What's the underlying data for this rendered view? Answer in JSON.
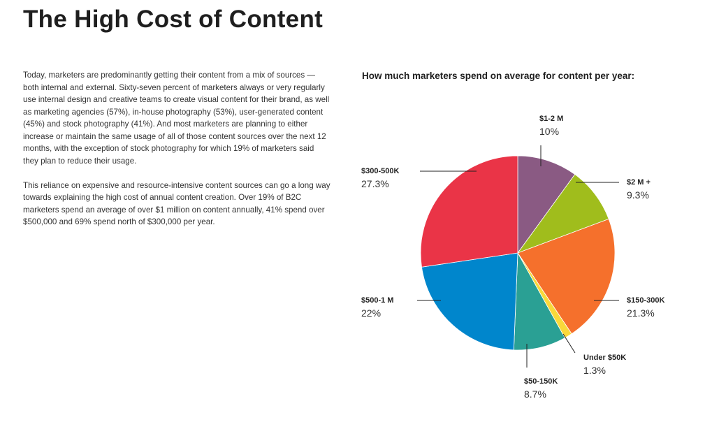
{
  "title": "The High Cost of Content",
  "paragraphs": [
    "Today, marketers are predominantly getting their content from a mix of sources — both internal and external. Sixty-seven percent of marketers always or very regularly use internal design and creative teams to create visual content for their brand, as well as marketing agencies (57%), in-house photography (53%), user-generated content (45%) and stock photography (41%). And most marketers are planning to either increase or maintain the same usage of all of those content sources over the next 12 months, with the exception of stock photography for which 19% of marketers said they plan to reduce their usage.",
    "This reliance on expensive and resource-intensive content sources can go a long way towards explaining the high cost of annual content creation. Over 19% of B2C marketers spend an average of over $1 million on content annually, 41% spend over $500,000 and 69% spend north of $300,000 per year."
  ],
  "chart_data": {
    "type": "pie",
    "title": "How much marketers spend on average for content per year:",
    "slices": [
      {
        "label": "$1-2 M",
        "value": 10,
        "display": "10%",
        "color": "#8a5a83"
      },
      {
        "label": "$2 M +",
        "value": 9.3,
        "display": "9.3%",
        "color": "#a0bd1c"
      },
      {
        "label": "$150-300K",
        "value": 21.3,
        "display": "21.3%",
        "color": "#f5702c"
      },
      {
        "label": "Under $50K",
        "value": 1.3,
        "display": "1.3%",
        "color": "#f9d93a"
      },
      {
        "label": "$50-150K",
        "value": 8.7,
        "display": "8.7%",
        "color": "#2aa094"
      },
      {
        "label": "$500-1 M",
        "value": 22,
        "display": "22%",
        "color": "#0086cc"
      },
      {
        "label": "$300-500K",
        "value": 27.3,
        "display": "27.3%",
        "color": "#ea3447"
      }
    ],
    "start": "top",
    "direction": "clockwise"
  }
}
